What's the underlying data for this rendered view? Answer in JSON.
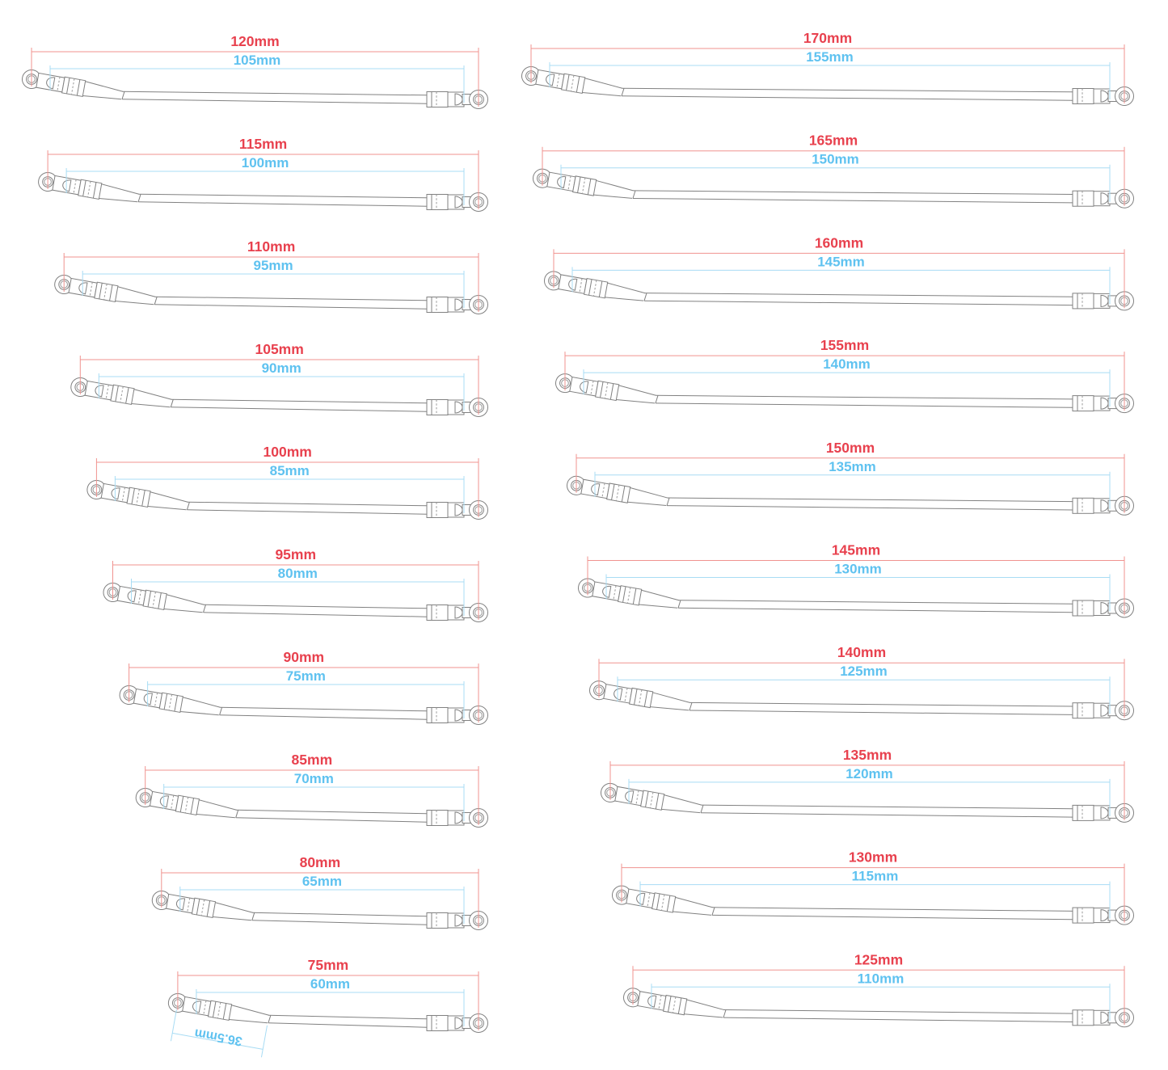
{
  "diagram": {
    "description": "linkage-rod-size-chart",
    "units": "mm",
    "colors": {
      "overall_text": "#e8414e",
      "overall_line": "#f0938f",
      "inner_text": "#5fc2f0",
      "inner_line": "#a8dcf4",
      "outline": "#818181",
      "outline_detail": "#9a9a9a"
    },
    "columns": [
      {
        "id": "left",
        "rods": [
          {
            "overall": "120mm",
            "inner": "105mm"
          },
          {
            "overall": "115mm",
            "inner": "100mm"
          },
          {
            "overall": "110mm",
            "inner": "95mm"
          },
          {
            "overall": "105mm",
            "inner": "90mm"
          },
          {
            "overall": "100mm",
            "inner": "85mm"
          },
          {
            "overall": "95mm",
            "inner": "80mm"
          },
          {
            "overall": "90mm",
            "inner": "75mm"
          },
          {
            "overall": "85mm",
            "inner": "70mm"
          },
          {
            "overall": "80mm",
            "inner": "65mm"
          },
          {
            "overall": "75mm",
            "inner": "60mm",
            "angled_section": "36.5mm"
          }
        ]
      },
      {
        "id": "right",
        "rods": [
          {
            "overall": "170mm",
            "inner": "155mm"
          },
          {
            "overall": "165mm",
            "inner": "150mm"
          },
          {
            "overall": "160mm",
            "inner": "145mm"
          },
          {
            "overall": "155mm",
            "inner": "140mm"
          },
          {
            "overall": "150mm",
            "inner": "135mm"
          },
          {
            "overall": "145mm",
            "inner": "130mm"
          },
          {
            "overall": "140mm",
            "inner": "125mm"
          },
          {
            "overall": "135mm",
            "inner": "120mm"
          },
          {
            "overall": "130mm",
            "inner": "115mm"
          },
          {
            "overall": "125mm",
            "inner": "110mm"
          }
        ]
      }
    ]
  }
}
